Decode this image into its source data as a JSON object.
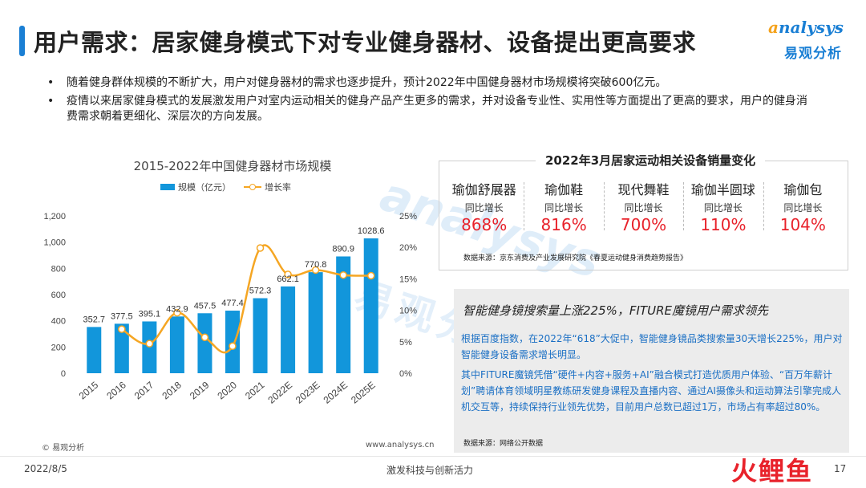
{
  "header": {
    "title": "用户需求：居家健身模式下对专业健身器材、设备提出更高要求",
    "logo_en_first": "a",
    "logo_en_rest": "nalysys",
    "logo_cn": "易观分析"
  },
  "bullets": [
    "随着健身群体规模的不断扩大，用户对健身器材的需求也逐步提升，预计2022年中国健身器材市场规模将突破600亿元。",
    "疫情以来居家健身模式的发展激发用户对室内运动相关的健身产品产生更多的需求，并对设备专业性、实用性等方面提出了更高的要求，用户的健身消费需求朝着更细化、深层次的方向发展。"
  ],
  "chart_data": {
    "type": "bar",
    "title": "2015-2022年中国健身器材市场规模",
    "categories": [
      "2015",
      "2016",
      "2017",
      "2018",
      "2019",
      "2020",
      "2021",
      "2022E",
      "2023E",
      "2024E",
      "2025E"
    ],
    "series": [
      {
        "name": "规模（亿元）",
        "type": "bar",
        "axis": "left",
        "color": "#1296db",
        "values": [
          352.7,
          377.5,
          395.1,
          432.9,
          457.5,
          477.4,
          572.3,
          662.1,
          770.8,
          890.9,
          1028.6
        ],
        "labels": [
          "352.7",
          "377.5",
          "395.1",
          "432.9",
          "457.5",
          "477.4",
          "572.3",
          "662.1",
          "770.8",
          "890.9",
          "1028.6"
        ]
      },
      {
        "name": "增长率",
        "type": "line",
        "axis": "right",
        "color": "#f5a623",
        "values": [
          null,
          7.0,
          4.7,
          9.6,
          5.7,
          4.3,
          19.9,
          15.7,
          16.4,
          15.6,
          15.5
        ]
      }
    ],
    "y_left_ticks": [
      "0",
      "200",
      "400",
      "600",
      "800",
      "1,000",
      "1,200"
    ],
    "y_left_range": [
      0,
      1200
    ],
    "y_right_ticks": [
      "0%",
      "5%",
      "10%",
      "15%",
      "20%",
      "25%"
    ],
    "y_right_range": [
      0,
      25
    ],
    "grid": false,
    "legend_position": "top"
  },
  "chart_source": "© 易观分析",
  "chart_url": "www.analysys.cn",
  "sales": {
    "title": "2022年3月居家运动相关设备销量变化",
    "sub_label": "同比增长",
    "items": [
      {
        "name": "瑜伽舒展器",
        "value": "868%"
      },
      {
        "name": "瑜伽鞋",
        "value": "816%"
      },
      {
        "name": "现代舞鞋",
        "value": "700%"
      },
      {
        "name": "瑜伽半圆球",
        "value": "110%"
      },
      {
        "name": "瑜伽包",
        "value": "104%"
      }
    ],
    "source": "数据来源：京东消费及产业发展研究院《春夏运动健身消费趋势报告》",
    "value_color": "#e8222b"
  },
  "mirror": {
    "headline": "智能健身镜搜索量上涨225%，FITURE魔镜用户需求领先",
    "p1": "根据百度指数，在2022年“618”大促中，智能健身镜品类搜索量30天增长225%，用户对智能健身设备需求增长明显。",
    "p2": "其中FITURE魔镜凭借“硬件+内容+服务+AI”融合模式打造优质用户体验、“百万年薪计划”聘请体育领域明星教练研发健身课程及直播内容、通过AI摄像头和运动算法引擎完成人机交互等，持续保持行业领先优势，目前用户总数已超过1万，市场占有率超过80%。",
    "source": "数据来源：网络公开数据"
  },
  "watermark": {
    "en": "analysys",
    "cn": "易观分析"
  },
  "footer": {
    "date": "2022/8/5",
    "slogan": "激发科技与创新活力",
    "page": "17",
    "corner_logo": "火鲤鱼"
  },
  "colors": {
    "accent": "#1a7fd4",
    "bar": "#1296db",
    "line": "#f5a623",
    "highlight": "#e8222b"
  }
}
